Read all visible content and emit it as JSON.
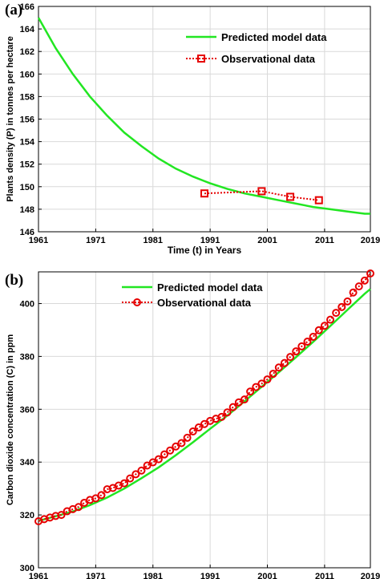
{
  "chart_data": [
    {
      "type": "line",
      "panel_label": "(a)",
      "xlabel": "Time (t) in Years",
      "ylabel": "Plants density (P) in tonnes per hectare",
      "xlim": [
        1961,
        2019
      ],
      "ylim": [
        146,
        166
      ],
      "x_ticks": [
        1961,
        1971,
        1981,
        1991,
        2001,
        2011,
        2019
      ],
      "y_ticks": [
        146,
        148,
        150,
        152,
        154,
        156,
        158,
        160,
        162,
        164,
        166
      ],
      "grid": true,
      "legend_position": "top-right",
      "series": [
        {
          "name": "Predicted model data",
          "style": "solid",
          "color": "#22e622",
          "x": [
            1961,
            1964,
            1967,
            1970,
            1973,
            1976,
            1979,
            1982,
            1985,
            1988,
            1991,
            1994,
            1997,
            2000,
            2003,
            2006,
            2009,
            2012,
            2015,
            2018,
            2019
          ],
          "y": [
            165.0,
            162.3,
            160.0,
            158.0,
            156.3,
            154.8,
            153.6,
            152.5,
            151.6,
            150.9,
            150.3,
            149.8,
            149.4,
            149.1,
            148.8,
            148.5,
            148.2,
            148.0,
            147.8,
            147.6,
            147.6
          ]
        },
        {
          "name": "Observational data",
          "style": "dotted-square",
          "color": "#e60000",
          "x": [
            1990,
            2000,
            2005,
            2010
          ],
          "y": [
            149.4,
            149.6,
            149.1,
            148.8
          ]
        }
      ]
    },
    {
      "type": "line",
      "panel_label": "(b)",
      "xlabel": "Time (t) in years",
      "ylabel": "Carbon dioxide concentration (C) in ppm",
      "xlim": [
        1961,
        2019
      ],
      "ylim": [
        300,
        412
      ],
      "x_ticks": [
        1961,
        1971,
        1981,
        1991,
        2001,
        2011,
        2019
      ],
      "y_ticks": [
        300,
        320,
        340,
        360,
        380,
        400
      ],
      "grid": true,
      "legend_position": "top-center",
      "series": [
        {
          "name": "Predicted model data",
          "style": "solid",
          "color": "#22e622",
          "x": [
            1961,
            1964,
            1967,
            1970,
            1973,
            1976,
            1979,
            1982,
            1985,
            1988,
            1991,
            1994,
            1997,
            2000,
            2003,
            2006,
            2009,
            2012,
            2015,
            2018,
            2019
          ],
          "y": [
            317.8,
            319.5,
            321.3,
            323.7,
            326.6,
            330.0,
            333.9,
            338.0,
            342.6,
            347.5,
            352.6,
            357.6,
            363.0,
            368.5,
            374.0,
            379.7,
            385.5,
            391.5,
            397.6,
            403.7,
            405.5
          ]
        },
        {
          "name": "Observational data",
          "style": "dotted-circle",
          "color": "#e60000",
          "x": [
            1961,
            1962,
            1963,
            1964,
            1965,
            1966,
            1967,
            1968,
            1969,
            1970,
            1971,
            1972,
            1973,
            1974,
            1975,
            1976,
            1977,
            1978,
            1979,
            1980,
            1981,
            1982,
            1983,
            1984,
            1985,
            1986,
            1987,
            1988,
            1989,
            1990,
            1991,
            1992,
            1993,
            1994,
            1995,
            1996,
            1997,
            1998,
            1999,
            2000,
            2001,
            2002,
            2003,
            2004,
            2005,
            2006,
            2007,
            2008,
            2009,
            2010,
            2011,
            2012,
            2013,
            2014,
            2015,
            2016,
            2017,
            2018,
            2019
          ],
          "y": [
            317.6,
            318.4,
            319.0,
            319.6,
            320.0,
            321.4,
            322.2,
            323.0,
            324.6,
            325.7,
            326.3,
            327.5,
            329.7,
            330.2,
            331.1,
            332.0,
            333.8,
            335.4,
            336.8,
            338.7,
            339.9,
            341.1,
            342.9,
            344.4,
            345.9,
            347.2,
            349.2,
            351.6,
            353.1,
            354.4,
            355.6,
            356.4,
            357.1,
            358.8,
            360.8,
            362.6,
            363.7,
            366.7,
            368.4,
            369.7,
            371.3,
            373.4,
            375.8,
            377.5,
            379.8,
            381.9,
            383.8,
            385.6,
            387.4,
            389.9,
            391.6,
            393.9,
            396.5,
            398.7,
            400.8,
            404.2,
            406.5,
            408.7,
            411.4
          ]
        }
      ]
    }
  ]
}
